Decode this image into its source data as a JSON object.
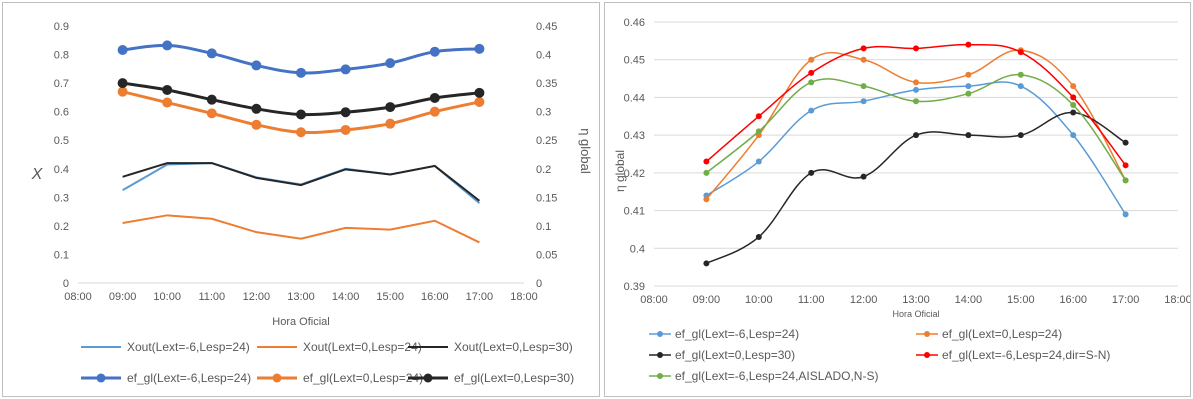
{
  "chart_data": [
    {
      "type": "line",
      "title": "",
      "xlabel": "Hora Oficial",
      "ylabel": "X",
      "ylabel_right": "η global",
      "x_ticks": [
        "08:00",
        "09:00",
        "10:00",
        "11:00",
        "12:00",
        "13:00",
        "14:00",
        "15:00",
        "16:00",
        "17:00",
        "18:00"
      ],
      "x": [
        "09:00",
        "10:00",
        "11:00",
        "12:00",
        "13:00",
        "14:00",
        "15:00",
        "16:00",
        "17:00"
      ],
      "y_ticks": [
        "0",
        "0.1",
        "0.2",
        "0.3",
        "0.4",
        "0.5",
        "0.6",
        "0.7",
        "0.8",
        "0.9"
      ],
      "y2_ticks": [
        "0",
        "0.05",
        "0.1",
        "0.15",
        "0.2",
        "0.25",
        "0.3",
        "0.35",
        "0.4",
        "0.45"
      ],
      "ylim": [
        0,
        0.9
      ],
      "y2lim": [
        0,
        0.45
      ],
      "grid": false,
      "legend_position": "bottom",
      "series": [
        {
          "name": "Xout(Lext=-6,Lesp=24)",
          "axis": "left",
          "color": "#5b9bd5",
          "marker": false,
          "smooth": false,
          "values": [
            0.325,
            0.415,
            0.42,
            0.37,
            0.345,
            0.4,
            0.38,
            0.41,
            0.28
          ]
        },
        {
          "name": "Xout(Lext=0,Lesp=24)",
          "axis": "left",
          "color": "#ed7d31",
          "marker": false,
          "smooth": false,
          "values": [
            0.21,
            0.237,
            0.225,
            0.178,
            0.155,
            0.193,
            0.187,
            0.218,
            0.142
          ]
        },
        {
          "name": "Xout(Lext=0,Lesp=30)",
          "axis": "left",
          "color": "#262626",
          "marker": false,
          "smooth": false,
          "values": [
            0.372,
            0.42,
            0.42,
            0.368,
            0.343,
            0.398,
            0.38,
            0.41,
            0.288
          ]
        },
        {
          "name": "ef_gl(Lext=-6,Lesp=24)",
          "axis": "right",
          "color": "#4472c4",
          "marker": true,
          "smooth": true,
          "values": [
            0.408,
            0.416,
            0.402,
            0.381,
            0.368,
            0.374,
            0.385,
            0.405,
            0.41
          ]
        },
        {
          "name": "ef_gl(Lext=0,Lesp=24)",
          "axis": "right",
          "color": "#ed7d31",
          "marker": true,
          "smooth": true,
          "values": [
            0.335,
            0.316,
            0.297,
            0.277,
            0.264,
            0.268,
            0.279,
            0.3,
            0.317
          ]
        },
        {
          "name": "ef_gl(Lext=0,Lesp=30)",
          "axis": "right",
          "color": "#262626",
          "marker": true,
          "smooth": true,
          "values": [
            0.35,
            0.338,
            0.321,
            0.305,
            0.295,
            0.299,
            0.308,
            0.324,
            0.333
          ]
        }
      ]
    },
    {
      "type": "line",
      "title": "",
      "xlabel": "Hora Oficial",
      "ylabel": "η global",
      "x_ticks": [
        "08:00",
        "09:00",
        "10:00",
        "11:00",
        "12:00",
        "13:00",
        "14:00",
        "15:00",
        "16:00",
        "17:00",
        "18:00"
      ],
      "x": [
        "09:00",
        "10:00",
        "11:00",
        "12:00",
        "13:00",
        "14:00",
        "15:00",
        "16:00",
        "17:00"
      ],
      "y_ticks": [
        "0.39",
        "0.4",
        "0.41",
        "0.42",
        "0.43",
        "0.44",
        "0.45",
        "0.46"
      ],
      "ylim": [
        0.39,
        0.46
      ],
      "grid": true,
      "legend_position": "bottom",
      "series": [
        {
          "name": "ef_gl(Lext=-6,Lesp=24)",
          "color": "#5b9bd5",
          "values": [
            0.414,
            0.423,
            0.4365,
            0.439,
            0.442,
            0.443,
            0.443,
            0.43,
            0.409
          ]
        },
        {
          "name": "ef_gl(Lext=0,Lesp=24)",
          "color": "#ed7d31",
          "values": [
            0.413,
            0.43,
            0.45,
            0.45,
            0.444,
            0.446,
            0.4525,
            0.443,
            0.418
          ]
        },
        {
          "name": "ef_gl(Lext=0,Lesp=30)",
          "color": "#262626",
          "values": [
            0.396,
            0.403,
            0.42,
            0.419,
            0.43,
            0.43,
            0.43,
            0.436,
            0.428
          ]
        },
        {
          "name": "ef_gl(Lext=-6,Lesp=24,dir=S-N)",
          "color": "#ff0000",
          "values": [
            0.423,
            0.435,
            0.4465,
            0.453,
            0.453,
            0.454,
            0.452,
            0.44,
            0.422
          ]
        },
        {
          "name": "ef_gl(Lext=-6,Lesp=24,AISLADO,N-S)",
          "color": "#70ad47",
          "values": [
            0.42,
            0.431,
            0.444,
            0.443,
            0.439,
            0.441,
            0.446,
            0.438,
            0.418
          ]
        }
      ]
    }
  ]
}
